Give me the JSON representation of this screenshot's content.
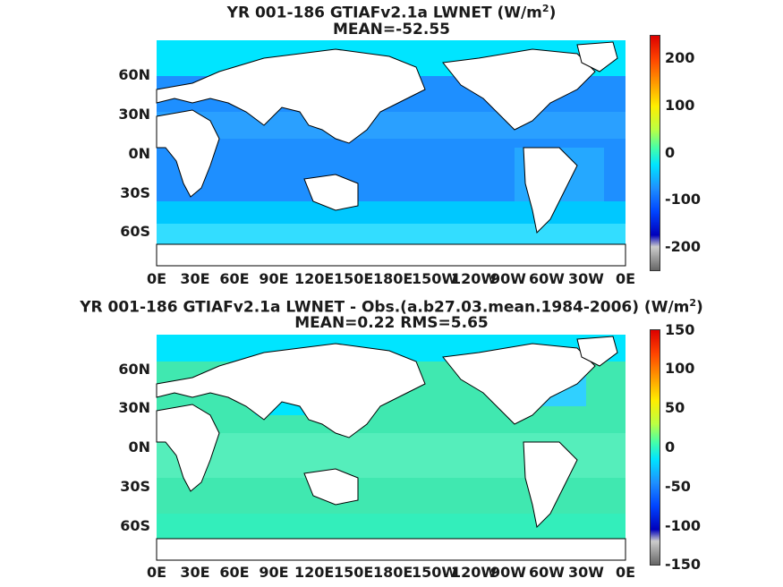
{
  "panels": [
    {
      "title_main": "YR 001-186 GTIAFv2.1a  LWNET (W/m",
      "title_sup": "2",
      "title_end": ")",
      "subtitle": "MEAN=-52.55",
      "lat_ticks": [
        "60N",
        "30N",
        "0N",
        "30S",
        "60S"
      ],
      "lon_ticks": [
        "0E",
        "30E",
        "60E",
        "90E",
        "120E",
        "150E",
        "180E",
        "150W",
        "120W",
        "90W",
        "60W",
        "30W",
        "0E"
      ],
      "colorbar_ticks": [
        "200",
        "100",
        "0",
        "-100",
        "-200"
      ],
      "ocean_color": "#1e90ff"
    },
    {
      "title_main": "YR 001-186 GTIAFv2.1a LWNET - Obs.(a.b27.03.mean.1984-2006) (W/m",
      "title_sup": "2",
      "title_end": ")",
      "subtitle": "MEAN=0.22 RMS=5.65",
      "lat_ticks": [
        "60N",
        "30N",
        "0N",
        "30S",
        "60S"
      ],
      "lon_ticks": [
        "0E",
        "30E",
        "60E",
        "90E",
        "120E",
        "150E",
        "180E",
        "150W",
        "120W",
        "90W",
        "60W",
        "30W",
        "0E"
      ],
      "colorbar_ticks": [
        "150",
        "100",
        "50",
        "0",
        "-50",
        "-100",
        "-150"
      ],
      "ocean_color": "#40e0a0"
    }
  ]
}
